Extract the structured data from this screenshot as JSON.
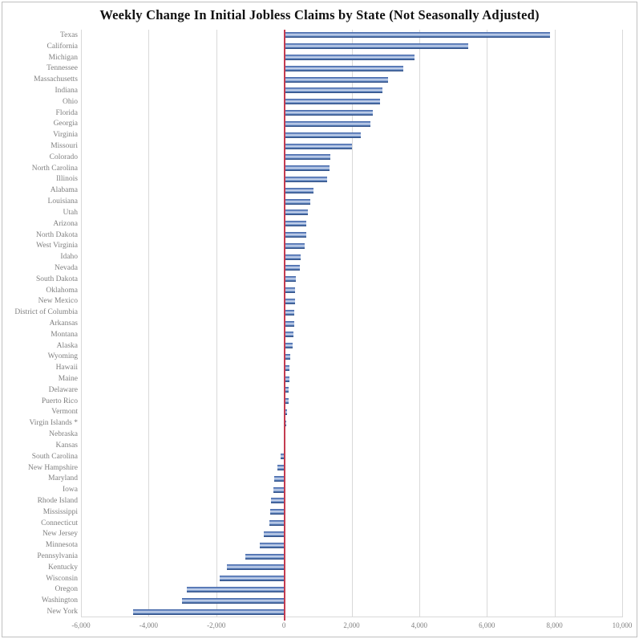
{
  "chart_data": {
    "type": "bar",
    "orientation": "horizontal",
    "title": "Weekly Change In Initial Jobless Claims by State (Not Seasonally Adjusted)",
    "categories": [
      "Texas",
      "California",
      "Michigan",
      "Tennessee",
      "Massachusetts",
      "Indiana",
      "Ohio",
      "Florida",
      "Georgia",
      "Virginia",
      "Missouri",
      "Colorado",
      "North Carolina",
      "Illinois",
      "Alabama",
      "Louisiana",
      "Utah",
      "Arizona",
      "North Dakota",
      "West Virginia",
      "Idaho",
      "Nevada",
      "South Dakota",
      "Oklahoma",
      "New Mexico",
      "District of Columbia",
      "Arkansas",
      "Montana",
      "Alaska",
      "Wyoming",
      "Hawaii",
      "Maine",
      "Delaware",
      "Puerto Rico",
      "Vermont",
      "Virgin Islands *",
      "Nebraska",
      "Kansas",
      "South Carolina",
      "New Hampshire",
      "Maryland",
      "Iowa",
      "Rhode Island",
      "Mississippi",
      "Connecticut",
      "New Jersey",
      "Minnesota",
      "Pennsylvania",
      "Kentucky",
      "Wisconsin",
      "Oregon",
      "Washington",
      "New York"
    ],
    "values": [
      7870,
      5460,
      3860,
      3540,
      3080,
      2910,
      2850,
      2630,
      2550,
      2270,
      2020,
      1370,
      1350,
      1270,
      870,
      780,
      700,
      670,
      660,
      610,
      500,
      460,
      360,
      340,
      320,
      310,
      300,
      290,
      260,
      180,
      170,
      160,
      140,
      130,
      80,
      60,
      50,
      30,
      -100,
      -200,
      -290,
      -310,
      -390,
      -410,
      -430,
      -600,
      -720,
      -1130,
      -1690,
      -1890,
      -2860,
      -3020,
      -4450
    ],
    "xlabel": "",
    "ylabel": "",
    "xlim": [
      -6000,
      10000
    ],
    "xticks": [
      {
        "value": -6000,
        "label": "-6,000"
      },
      {
        "value": -4000,
        "label": "-4,000"
      },
      {
        "value": -2000,
        "label": "-2,000"
      },
      {
        "value": 0,
        "label": "0"
      },
      {
        "value": 2000,
        "label": "2,000"
      },
      {
        "value": 4000,
        "label": "4,000"
      },
      {
        "value": 6000,
        "label": "6,000"
      },
      {
        "value": 8000,
        "label": "8,000"
      },
      {
        "value": 10000,
        "label": "10,000"
      }
    ],
    "grid": "vertical-gridlines-on",
    "legend": "none",
    "colors": {
      "bar": "#4a72b8",
      "bar_edge_dark": "#1f3a74",
      "zero_line": "#c43c50",
      "gridline": "#d9d9d9",
      "axis_label": "#7f7f7f",
      "title": "#111111"
    }
  }
}
